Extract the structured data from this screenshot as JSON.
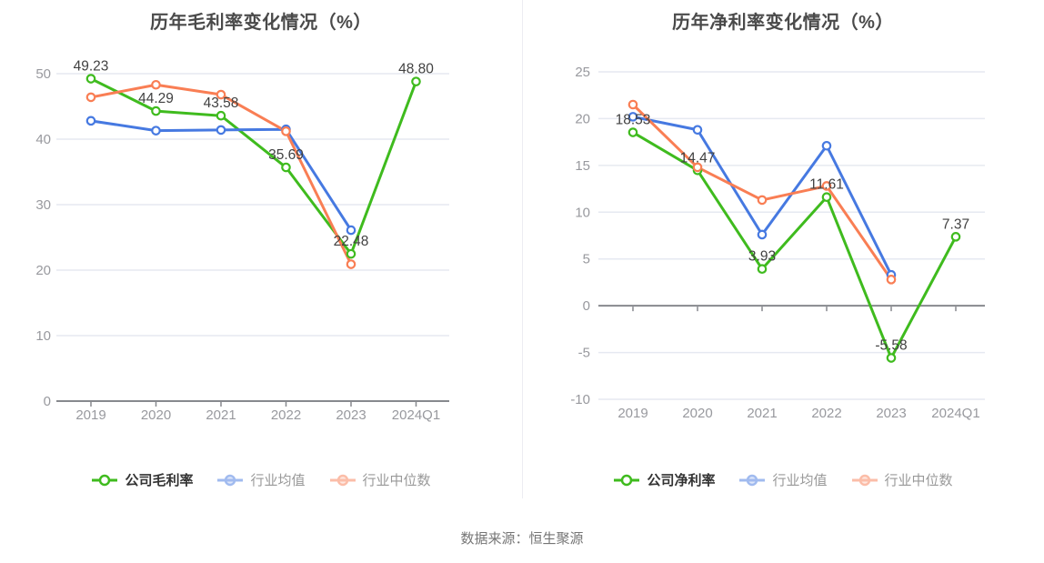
{
  "page": {
    "source_label": "数据来源：恒生聚源",
    "background": "#ffffff"
  },
  "colors": {
    "company_green": "#3fbb1e",
    "industry_avg_blue": "#4679e1",
    "industry_median_orange": "#f97e54",
    "grid_line": "#e6e9f1",
    "axis_line": "#87898e",
    "tick_label": "#98999e",
    "data_label": "#414141",
    "title_text": "#4a4a4a",
    "legend_active_text": "#333333",
    "legend_muted_text": "#999999",
    "divider": "#ececf2"
  },
  "chart_data": [
    {
      "type": "line",
      "title": "历年毛利率变化情况（%）",
      "categories": [
        "2019",
        "2020",
        "2021",
        "2022",
        "2023",
        "2024Q1"
      ],
      "ylim": [
        0,
        50
      ],
      "ytick_step": 10,
      "yticks": [
        "0",
        "10",
        "20",
        "30",
        "40",
        "50"
      ],
      "grid": true,
      "legend_position": "bottom",
      "series": [
        {
          "name": "公司毛利率",
          "role": "company-gross-margin",
          "color_key": "company_green",
          "labels_visible": true,
          "values": [
            49.23,
            44.29,
            43.58,
            35.69,
            22.48,
            48.8
          ],
          "labels": [
            "49.23",
            "44.29",
            "43.58",
            "35.69",
            "22.48",
            "48.80"
          ]
        },
        {
          "name": "行业均值",
          "role": "industry-average",
          "color_key": "industry_avg_blue",
          "labels_visible": false,
          "values": [
            42.8,
            41.3,
            41.4,
            41.5,
            26.1,
            null
          ]
        },
        {
          "name": "行业中位数",
          "role": "industry-median",
          "color_key": "industry_median_orange",
          "labels_visible": false,
          "values": [
            46.4,
            48.3,
            46.8,
            41.2,
            20.9,
            null
          ]
        }
      ]
    },
    {
      "type": "line",
      "title": "历年净利率变化情况（%）",
      "categories": [
        "2019",
        "2020",
        "2021",
        "2022",
        "2023",
        "2024Q1"
      ],
      "ylim": [
        -10,
        25
      ],
      "ytick_step": 5,
      "yticks": [
        "-10",
        "-5",
        "0",
        "5",
        "10",
        "15",
        "20",
        "25"
      ],
      "grid": true,
      "legend_position": "bottom",
      "series": [
        {
          "name": "公司净利率",
          "role": "company-net-margin",
          "color_key": "company_green",
          "labels_visible": true,
          "values": [
            18.53,
            14.47,
            3.93,
            11.61,
            -5.58,
            7.37
          ],
          "labels": [
            "18.53",
            "14.47",
            "3.93",
            "11.61",
            "-5.58",
            "7.37"
          ]
        },
        {
          "name": "行业均值",
          "role": "industry-average",
          "color_key": "industry_avg_blue",
          "labels_visible": false,
          "values": [
            20.2,
            18.8,
            7.6,
            17.1,
            3.3,
            null
          ]
        },
        {
          "name": "行业中位数",
          "role": "industry-median",
          "color_key": "industry_median_orange",
          "labels_visible": false,
          "values": [
            21.5,
            14.8,
            11.3,
            12.8,
            2.8,
            null
          ]
        }
      ]
    }
  ]
}
